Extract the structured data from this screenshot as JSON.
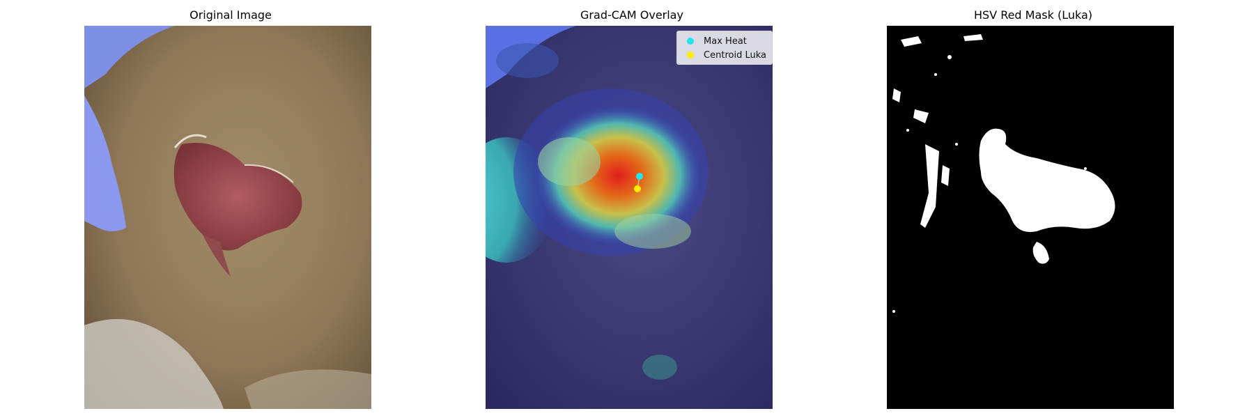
{
  "panels": [
    {
      "title": "Original Image"
    },
    {
      "title": "Grad-CAM Overlay",
      "legend": [
        {
          "label": "Max Heat",
          "color": "#22e3ee"
        },
        {
          "label": "Centroid Luka",
          "color": "#ffee00"
        }
      ]
    },
    {
      "title": "HSV Red Mask (Luka)"
    }
  ],
  "colors": {
    "skin": "#9b8462",
    "wound": "#9a4a52",
    "glove": "#7e8fe6",
    "mask_bg": "#000000",
    "mask_fg": "#ffffff"
  }
}
